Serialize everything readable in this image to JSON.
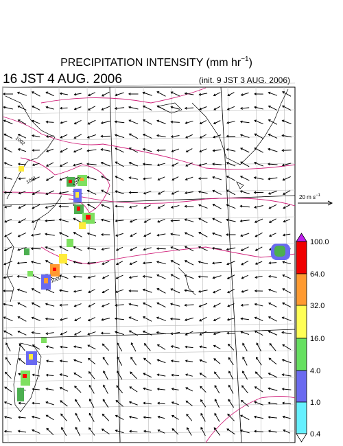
{
  "title": {
    "main": "PRECIPITATION INTENSITY (mm hr",
    "superscript": "−1",
    "end": ")"
  },
  "valid_time": "16 JST 4 AUG. 2006",
  "init_time": "(init. 9 JST 3 AUG. 2006)",
  "reference_vector": {
    "label": "20 m s",
    "superscript": "−1"
  },
  "colorbar": {
    "labels": [
      "100.0",
      "64.0",
      "32.0",
      "16.0",
      "4.0",
      "1.0",
      "0.4"
    ]
  },
  "isobar_labels": [
    "1002",
    "1001",
    "1001",
    "1000"
  ]
}
